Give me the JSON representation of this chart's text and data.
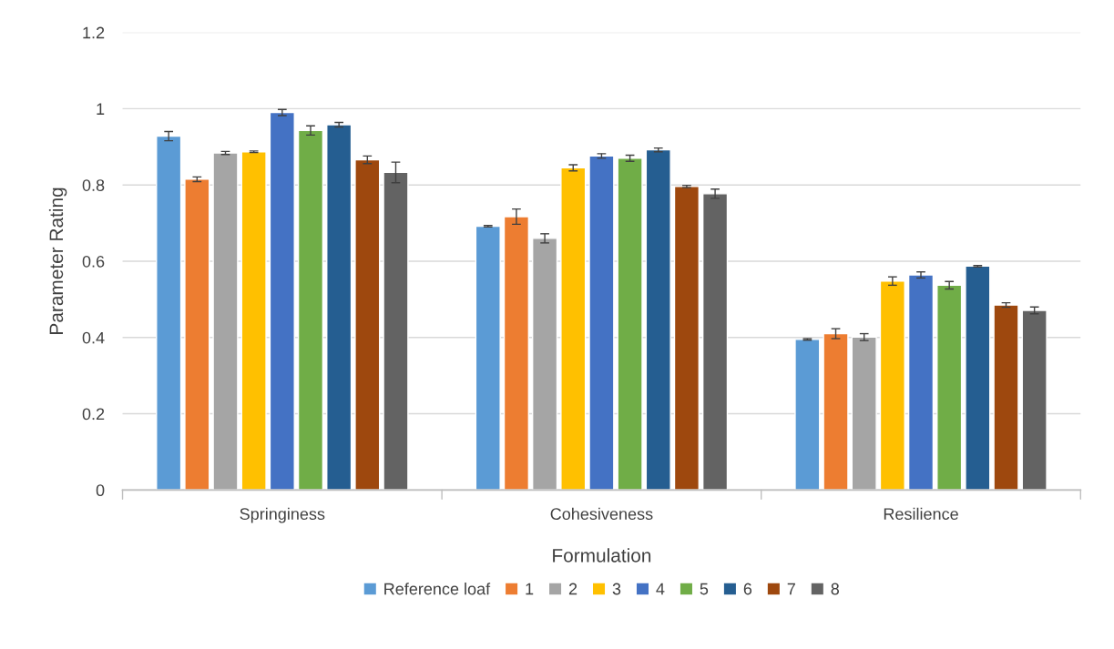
{
  "chart_data": {
    "type": "bar",
    "xlabel": "Formulation",
    "ylabel": "Parameter Rating",
    "categories": [
      "Springiness",
      "Cohesiveness",
      "Resilience"
    ],
    "ylim": [
      0,
      1.2
    ],
    "yticks": [
      0,
      0.2,
      0.4,
      0.6,
      0.8,
      1,
      1.2
    ],
    "grid": "y",
    "legend": "bottom",
    "series": [
      {
        "name": "Reference loaf",
        "color": "#5b9bd5",
        "values": [
          0.928,
          0.692,
          0.395
        ],
        "errors": [
          0.012,
          0.002,
          0.002
        ]
      },
      {
        "name": "1",
        "color": "#ed7d31",
        "values": [
          0.815,
          0.717,
          0.41
        ],
        "errors": [
          0.006,
          0.02,
          0.013
        ]
      },
      {
        "name": "2",
        "color": "#a5a5a5",
        "values": [
          0.884,
          0.66,
          0.401
        ],
        "errors": [
          0.004,
          0.012,
          0.009
        ]
      },
      {
        "name": "3",
        "color": "#ffc000",
        "values": [
          0.887,
          0.845,
          0.548
        ],
        "errors": [
          0.002,
          0.008,
          0.011
        ]
      },
      {
        "name": "4",
        "color": "#4472c4",
        "values": [
          0.99,
          0.876,
          0.564
        ],
        "errors": [
          0.008,
          0.006,
          0.008
        ]
      },
      {
        "name": "5",
        "color": "#70ad47",
        "values": [
          0.943,
          0.87,
          0.537
        ],
        "errors": [
          0.012,
          0.008,
          0.01
        ]
      },
      {
        "name": "6",
        "color": "#255e91",
        "values": [
          0.958,
          0.892,
          0.587
        ],
        "errors": [
          0.006,
          0.005,
          0.002
        ]
      },
      {
        "name": "7",
        "color": "#9e480e",
        "values": [
          0.866,
          0.796,
          0.485
        ],
        "errors": [
          0.01,
          0.003,
          0.006
        ]
      },
      {
        "name": "8",
        "color": "#636363",
        "values": [
          0.833,
          0.777,
          0.471
        ],
        "errors": [
          0.027,
          0.012,
          0.009
        ]
      }
    ]
  }
}
